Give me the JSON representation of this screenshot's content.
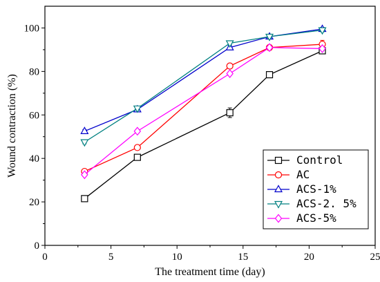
{
  "chart_data": {
    "type": "line",
    "xlabel": "The treatment time (day)",
    "ylabel": "Wound contraction (%)",
    "xlim": [
      0,
      25
    ],
    "ylim": [
      0,
      110
    ],
    "xticks": [
      0,
      5,
      10,
      15,
      20,
      25
    ],
    "yticks": [
      0,
      20,
      40,
      60,
      80,
      100
    ],
    "grid": false,
    "legend_position": "bottom-right",
    "x": [
      3,
      7,
      14,
      17,
      21
    ],
    "series": [
      {
        "name": "Control",
        "values": [
          21.5,
          40.5,
          61,
          78.5,
          89.5
        ],
        "errors": [
          0.8,
          0.8,
          2.2,
          1.0,
          1.0
        ],
        "color": "#000000",
        "marker": "square"
      },
      {
        "name": "AC",
        "values": [
          34,
          45,
          82.5,
          91,
          92.5
        ],
        "errors": [
          0.8,
          0.8,
          0.8,
          1.0,
          1.8
        ],
        "color": "#ff0000",
        "marker": "circle"
      },
      {
        "name": "ACS-1%",
        "values": [
          52.5,
          62.5,
          91,
          96,
          99.5
        ],
        "errors": [
          0.8,
          0.8,
          0.8,
          0.8,
          0.8
        ],
        "color": "#0000cc",
        "marker": "triangle-up"
      },
      {
        "name": "ACS-2. 5%",
        "values": [
          47.5,
          63,
          93,
          96,
          99
        ],
        "errors": [
          0.8,
          0.8,
          0.8,
          0.8,
          0.8
        ],
        "color": "#008080",
        "marker": "triangle-down"
      },
      {
        "name": "ACS-5%",
        "values": [
          32.5,
          52.5,
          79,
          91,
          90.5
        ],
        "errors": [
          0.8,
          0.8,
          0.8,
          0.8,
          0.8
        ],
        "color": "#ff00ff",
        "marker": "diamond"
      }
    ]
  }
}
